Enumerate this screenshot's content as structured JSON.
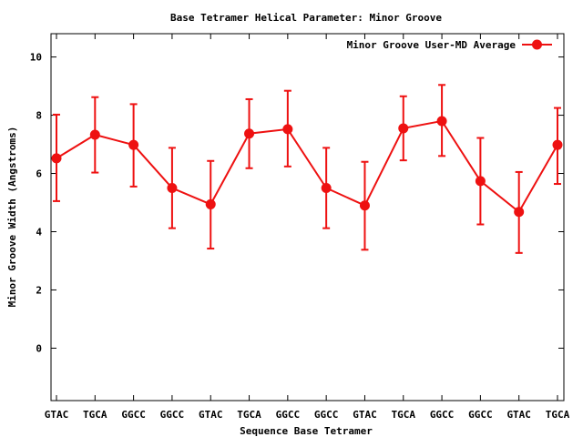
{
  "chart_data": {
    "type": "line",
    "title": "Base Tetramer Helical Parameter: Minor Groove",
    "xlabel": "Sequence Base Tetramer",
    "ylabel": "Minor Groove Width (Angstroms)",
    "ylim": [
      -1.8,
      10.8
    ],
    "yticks": [
      0,
      2,
      4,
      6,
      8,
      10
    ],
    "ytick_labels": [
      "0",
      "2",
      "4",
      "6",
      "8",
      "10"
    ],
    "categories": [
      "GTAC",
      "TGCA",
      "GGCC",
      "GGCC",
      "GTAC",
      "TGCA",
      "GGCC",
      "GGCC",
      "GTAC",
      "TGCA",
      "GGCC",
      "GGCC",
      "GTAC",
      "TGCA"
    ],
    "grid": false,
    "legend_position": "top-right",
    "series": [
      {
        "name": "Minor Groove User-MD Average",
        "color": "#ee1111",
        "values": [
          6.52,
          7.33,
          6.98,
          5.5,
          4.94,
          7.37,
          7.52,
          5.5,
          4.9,
          7.55,
          7.8,
          5.74,
          4.68,
          6.98
        ],
        "err_low": [
          5.05,
          6.03,
          5.55,
          4.12,
          3.42,
          6.18,
          6.24,
          4.12,
          3.38,
          6.45,
          6.6,
          4.25,
          3.27,
          5.64
        ],
        "err_high": [
          8.02,
          8.62,
          8.38,
          6.88,
          6.43,
          8.55,
          8.84,
          6.88,
          6.4,
          8.65,
          9.04,
          7.22,
          6.05,
          8.25
        ]
      }
    ]
  }
}
